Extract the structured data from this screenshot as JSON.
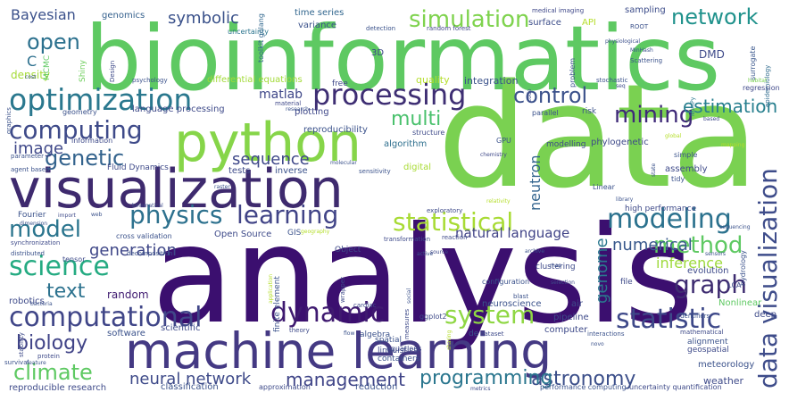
{
  "words": [
    {
      "text": "analysis",
      "color": "#3b0f6f"
    },
    {
      "text": "data",
      "color": "#7ad151"
    },
    {
      "text": "bioinformatics",
      "color": "#5ec962"
    },
    {
      "text": "visualization",
      "color": "#3e2a6e"
    },
    {
      "text": "machine learning",
      "color": "#443983"
    },
    {
      "text": "python",
      "color": "#86d549"
    },
    {
      "text": "optimization",
      "color": "#2a788e"
    },
    {
      "text": "processing",
      "color": "#3e2e73"
    },
    {
      "text": "computing",
      "color": "#3e4a89"
    },
    {
      "text": "computational",
      "color": "#404688"
    },
    {
      "text": "data visualization",
      "color": "#3e4c8a"
    },
    {
      "text": "modeling",
      "color": "#2c728e"
    },
    {
      "text": "statistic",
      "color": "#3e4989"
    },
    {
      "text": "dynamic",
      "color": "#3f1a70"
    },
    {
      "text": "mining",
      "color": "#3f2a78"
    },
    {
      "text": "network",
      "color": "#20928c"
    },
    {
      "text": "control",
      "color": "#3b518b"
    },
    {
      "text": "simulation",
      "color": "#7fd34e"
    },
    {
      "text": "science",
      "color": "#25ab82"
    },
    {
      "text": "physics",
      "color": "#2d718e"
    },
    {
      "text": "learning",
      "color": "#414487"
    },
    {
      "text": "system",
      "color": "#8fd744"
    },
    {
      "text": "statistical",
      "color": "#a8db34"
    },
    {
      "text": "graph",
      "color": "#3e2c70"
    },
    {
      "text": "method",
      "color": "#5ec962"
    },
    {
      "text": "model",
      "color": "#2b758e"
    },
    {
      "text": "genetic",
      "color": "#33638d"
    },
    {
      "text": "text",
      "color": "#2c728e"
    },
    {
      "text": "climate",
      "color": "#5ec962"
    },
    {
      "text": "biology",
      "color": "#404387"
    },
    {
      "text": "astronomy",
      "color": "#3c4f8a"
    },
    {
      "text": "programming",
      "color": "#2a768e"
    },
    {
      "text": "management",
      "color": "#404588"
    },
    {
      "text": "neural network",
      "color": "#3e4a89"
    },
    {
      "text": "open",
      "color": "#2c718e"
    },
    {
      "text": "multi",
      "color": "#4ac16d"
    },
    {
      "text": "estimation",
      "color": "#277f8e"
    },
    {
      "text": "genome",
      "color": "#2a778e"
    },
    {
      "text": "neutron",
      "color": "#32648e"
    },
    {
      "text": "inference",
      "color": "#9dd93b"
    },
    {
      "text": "numerical",
      "color": "#38588c"
    },
    {
      "text": "symbolic",
      "color": "#3b528b"
    },
    {
      "text": "image",
      "color": "#3f4889"
    },
    {
      "text": "sequence",
      "color": "#3f4889"
    },
    {
      "text": "natural language",
      "color": "#404387"
    },
    {
      "text": "generation",
      "color": "#3f4788"
    },
    {
      "text": "matlab",
      "color": "#3f4788"
    },
    {
      "text": "Bayesian",
      "color": "#3b518b"
    },
    {
      "text": "C",
      "color": "#2d708e"
    },
    {
      "text": "density",
      "color": "#a5db36"
    },
    {
      "text": "genomics",
      "color": "#34608d"
    },
    {
      "text": "time series",
      "color": "#31668e"
    },
    {
      "text": "variance",
      "color": "#3b528b"
    },
    {
      "text": "uncertainty",
      "color": "#2b748e"
    },
    {
      "text": "detection",
      "color": "#3b528b"
    },
    {
      "text": "random forest",
      "color": "#404688"
    },
    {
      "text": "medical imaging",
      "color": "#3f4889"
    },
    {
      "text": "sampling",
      "color": "#3d4d8a"
    },
    {
      "text": "surface",
      "color": "#3d4e8a"
    },
    {
      "text": "API",
      "color": "#b5de2b"
    },
    {
      "text": "ROOT",
      "color": "#3b518b"
    },
    {
      "text": "physiological",
      "color": "#3c508b"
    },
    {
      "text": "MinHash",
      "color": "#3b528b"
    },
    {
      "text": "Scattering",
      "color": "#3b528b"
    },
    {
      "text": "DMD",
      "color": "#3e4a89"
    },
    {
      "text": "surrogate",
      "color": "#39568c"
    },
    {
      "text": "epidemiology",
      "color": "#2f6b8e"
    },
    {
      "text": "3D",
      "color": "#3f4889"
    },
    {
      "text": "quality",
      "color": "#b5de2b"
    },
    {
      "text": "integration",
      "color": "#3b528b"
    },
    {
      "text": "stochastic",
      "color": "#3b528b"
    },
    {
      "text": "seq",
      "color": "#3e4a89"
    },
    {
      "text": "habitat",
      "color": "#7ad151"
    },
    {
      "text": "regression",
      "color": "#3f4889"
    },
    {
      "text": "differential equations",
      "color": "#a2da37"
    },
    {
      "text": "free",
      "color": "#3f4889"
    },
    {
      "text": "psychology",
      "color": "#3b528b"
    },
    {
      "text": "MCMC",
      "color": "#5ec962"
    },
    {
      "text": "Shiny",
      "color": "#6ccd5a"
    },
    {
      "text": "Design",
      "color": "#3e4a89"
    },
    {
      "text": "toolkit golang",
      "color": "#31678e"
    },
    {
      "text": "cost",
      "color": "#3b528b"
    },
    {
      "text": "language processing",
      "color": "#3e4a89"
    },
    {
      "text": "geometry",
      "color": "#3b528b"
    },
    {
      "text": "plotting",
      "color": "#3f4889"
    },
    {
      "text": "material",
      "color": "#3f4889"
    },
    {
      "text": "research",
      "color": "#3b528b"
    },
    {
      "text": "parallel",
      "color": "#3b528b"
    },
    {
      "text": "risk",
      "color": "#3b528b"
    },
    {
      "text": "NumPy",
      "color": "#2a768e"
    },
    {
      "text": "based",
      "color": "#3f4889"
    },
    {
      "text": "graphics",
      "color": "#3b528b"
    },
    {
      "text": "information",
      "color": "#3e4a89"
    },
    {
      "text": "parameter",
      "color": "#3b528b"
    },
    {
      "text": "structure",
      "color": "#3e4a89"
    },
    {
      "text": "reproducibility",
      "color": "#3b528b"
    },
    {
      "text": "algorithm",
      "color": "#2e6f8e"
    },
    {
      "text": "modelling",
      "color": "#3e4a89"
    },
    {
      "text": "phylogenetic",
      "color": "#3e4a89"
    },
    {
      "text": "global",
      "color": "#b5de2b"
    },
    {
      "text": "mapping",
      "color": "#b5de2b"
    },
    {
      "text": "simple",
      "color": "#3b528b"
    },
    {
      "text": "GPU",
      "color": "#3b528b"
    },
    {
      "text": "chemistry",
      "color": "#3f4889"
    },
    {
      "text": "Linear",
      "color": "#3b528b"
    },
    {
      "text": "state",
      "color": "#3b528b"
    },
    {
      "text": "assembly",
      "color": "#3e4a89"
    },
    {
      "text": "tidy",
      "color": "#3b528b"
    },
    {
      "text": "agent based",
      "color": "#3b528b"
    },
    {
      "text": "Fluid Dynamics",
      "color": "#3e4a89"
    },
    {
      "text": "tests",
      "color": "#3e4a89"
    },
    {
      "text": "inverse",
      "color": "#3b528b"
    },
    {
      "text": "sensitivity",
      "color": "#3b528b"
    },
    {
      "text": "molecular",
      "color": "#3b528b"
    },
    {
      "text": "digital",
      "color": "#a8db34"
    },
    {
      "text": "raster",
      "color": "#3b528b"
    },
    {
      "text": "exploratory",
      "color": "#3e4a89"
    },
    {
      "text": "library",
      "color": "#3b528b"
    },
    {
      "text": "high performance",
      "color": "#3e4a89"
    },
    {
      "text": "sequencing",
      "color": "#3b528b"
    },
    {
      "text": "Fourier",
      "color": "#3b528b"
    },
    {
      "text": "import",
      "color": "#3e4a89"
    },
    {
      "text": "web",
      "color": "#3b528b"
    },
    {
      "text": "kinematical",
      "color": "#3e4a89"
    },
    {
      "text": "dimension",
      "color": "#3b528b"
    },
    {
      "text": "synchronization",
      "color": "#3e4a89"
    },
    {
      "text": "cross validation",
      "color": "#3b528b"
    },
    {
      "text": "Open Source",
      "color": "#3e4a89"
    },
    {
      "text": "GIS",
      "color": "#3b528b"
    },
    {
      "text": "geography",
      "color": "#b5de2b"
    },
    {
      "text": "transformation",
      "color": "#3e4a89"
    },
    {
      "text": "reaction",
      "color": "#3e4a89"
    },
    {
      "text": "distributed",
      "color": "#3b528b"
    },
    {
      "text": "tensor",
      "color": "#3e4a89"
    },
    {
      "text": "decomposition",
      "color": "#3b528b"
    },
    {
      "text": "Object",
      "color": "#3e4a89"
    },
    {
      "text": "active",
      "color": "#3b528b"
    },
    {
      "text": "source",
      "color": "#3e4a89"
    },
    {
      "text": "archive",
      "color": "#3b528b"
    },
    {
      "text": "clustering",
      "color": "#3e4a89"
    },
    {
      "text": "map",
      "color": "#3b528b"
    },
    {
      "text": "sensors",
      "color": "#3b528b"
    },
    {
      "text": "evolution",
      "color": "#3e4a89"
    },
    {
      "text": "hydrology",
      "color": "#3b528b"
    },
    {
      "text": "LCA",
      "color": "#3e4a89"
    },
    {
      "text": "robotics",
      "color": "#3e4a89"
    },
    {
      "text": "random",
      "color": "#3f1a70"
    },
    {
      "text": "finite element",
      "color": "#3b528b"
    },
    {
      "text": "wrapper",
      "color": "#3e4a89"
    },
    {
      "text": "configuration",
      "color": "#3b528b"
    },
    {
      "text": "selection",
      "color": "#3e4a89"
    },
    {
      "text": "file",
      "color": "#3e4a89"
    },
    {
      "text": "application",
      "color": "#b5de2b"
    },
    {
      "text": "social",
      "color": "#3b528b"
    },
    {
      "text": "cardiac",
      "color": "#3e4a89"
    },
    {
      "text": "blast",
      "color": "#3b528b"
    },
    {
      "text": "Identifiers",
      "color": "#3b528b"
    },
    {
      "text": "Nonlinear",
      "color": "#5ec962"
    },
    {
      "text": "deep",
      "color": "#3e4a89"
    },
    {
      "text": "bacteria",
      "color": "#3b528b"
    },
    {
      "text": "measures",
      "color": "#3e4a89"
    },
    {
      "text": "ggplot2",
      "color": "#3e4a89"
    },
    {
      "text": "neuroscience",
      "color": "#3b528b"
    },
    {
      "text": "air",
      "color": "#3e4a89"
    },
    {
      "text": "pipeline",
      "color": "#3e4a89"
    },
    {
      "text": "software",
      "color": "#3b528b"
    },
    {
      "text": "scientific",
      "color": "#3e4a89"
    },
    {
      "text": "algebra",
      "color": "#3b528b"
    },
    {
      "text": "theory",
      "color": "#3e4a89"
    },
    {
      "text": "flow",
      "color": "#3b528b"
    },
    {
      "text": "computer",
      "color": "#3e4a89"
    },
    {
      "text": "de",
      "color": "#3b528b"
    },
    {
      "text": "dataset",
      "color": "#3e4a89"
    },
    {
      "text": "interactions",
      "color": "#3b528b"
    },
    {
      "text": "mathematical",
      "color": "#3e4a89"
    },
    {
      "text": "alignment",
      "color": "#3b528b"
    },
    {
      "text": "geospatial",
      "color": "#3e4a89"
    },
    {
      "text": "spatial",
      "color": "#3b528b"
    },
    {
      "text": "linguistics",
      "color": "#3e4a89"
    },
    {
      "text": "containers",
      "color": "#3b528b"
    },
    {
      "text": "equations",
      "color": "#3e4a89"
    },
    {
      "text": "sharing",
      "color": "#b5de2b"
    },
    {
      "text": "novo",
      "color": "#3b528b"
    },
    {
      "text": "stability",
      "color": "#3e4a89"
    },
    {
      "text": "survival",
      "color": "#3b528b"
    },
    {
      "text": "protein",
      "color": "#3e4a89"
    },
    {
      "text": "feature",
      "color": "#3b528b"
    },
    {
      "text": "reproducible research",
      "color": "#3e4a89"
    },
    {
      "text": "classification",
      "color": "#3b528b"
    },
    {
      "text": "approximation",
      "color": "#3e4a89"
    },
    {
      "text": "reduction",
      "color": "#3b528b"
    },
    {
      "text": "metrics",
      "color": "#3e4a89"
    },
    {
      "text": "performance computing",
      "color": "#3b528b"
    },
    {
      "text": "uncertainty quantification",
      "color": "#3e4a89"
    },
    {
      "text": "meteorology",
      "color": "#3b528b"
    },
    {
      "text": "weather",
      "color": "#3e4a89"
    },
    {
      "text": "relativity",
      "color": "#b5de2b"
    },
    {
      "text": "code",
      "color": "#3e4a89"
    },
    {
      "text": "problem",
      "color": "#3b528b"
    }
  ]
}
